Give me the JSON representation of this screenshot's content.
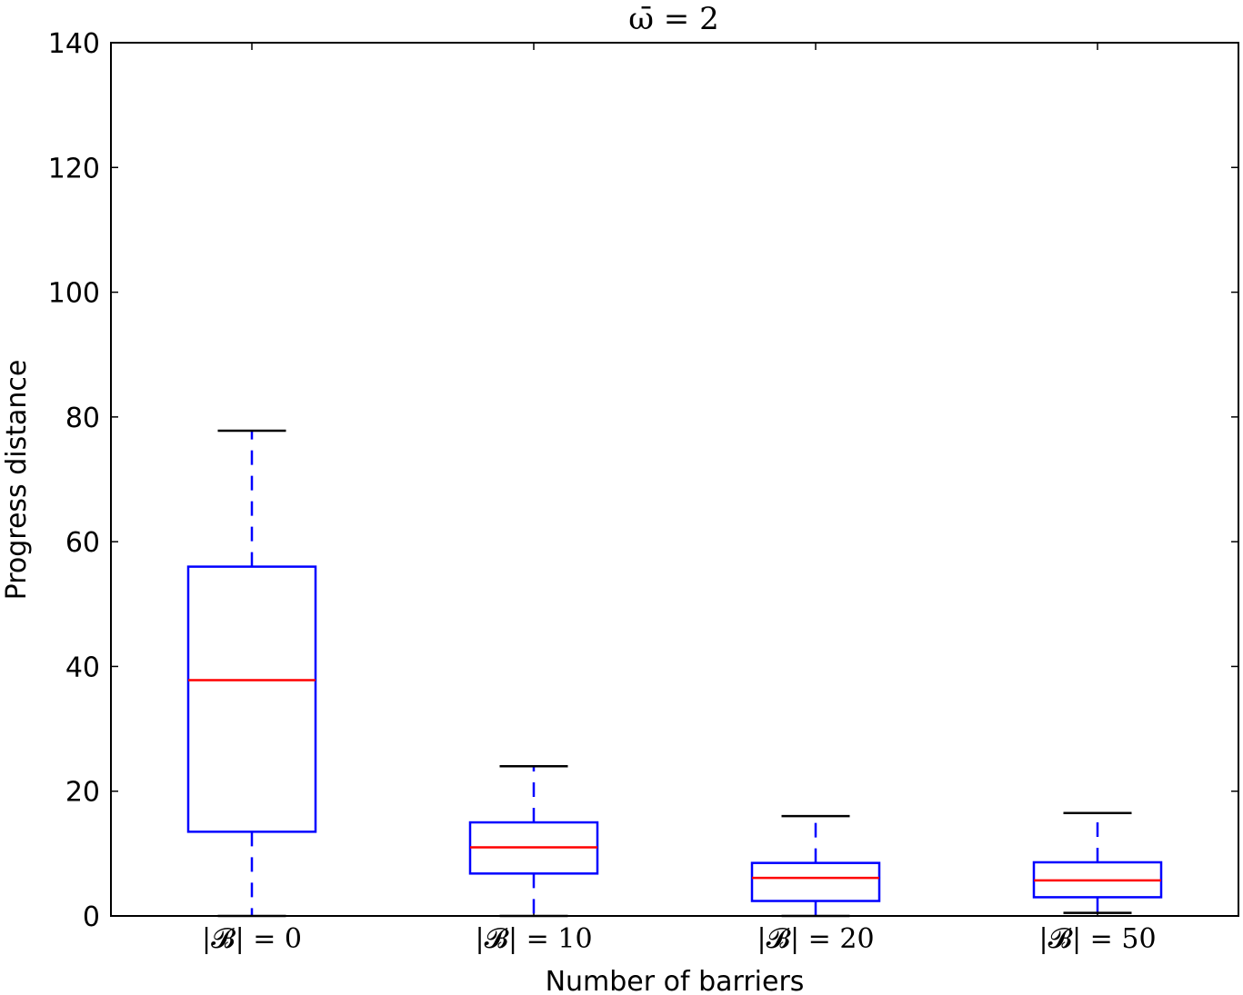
{
  "chart_data": {
    "type": "boxplot",
    "title": "ω̄ = 2",
    "xlabel": "Number of barriers",
    "ylabel": "Progress distance",
    "ylim": [
      0,
      140
    ],
    "yticks": [
      0,
      20,
      40,
      60,
      80,
      100,
      120,
      140
    ],
    "grid": false,
    "categories": [
      "|𝓑| = 0",
      "|𝓑| = 10",
      "|𝓑| = 20",
      "|𝓑| = 50"
    ],
    "boxes": [
      {
        "whisker_low": 0.0,
        "q1": 13.5,
        "median": 37.8,
        "q3": 56.0,
        "whisker_high": 77.8
      },
      {
        "whisker_low": 0.0,
        "q1": 6.8,
        "median": 11.0,
        "q3": 15.0,
        "whisker_high": 24.0
      },
      {
        "whisker_low": 0.0,
        "q1": 2.4,
        "median": 6.1,
        "q3": 8.5,
        "whisker_high": 16.0
      },
      {
        "whisker_low": 0.5,
        "q1": 3.0,
        "median": 5.7,
        "q3": 8.6,
        "whisker_high": 16.5
      }
    ],
    "colors": {
      "box": "#0000ff",
      "median": "#ff0000",
      "cap": "#000000",
      "whisker": "#0000ff"
    }
  }
}
